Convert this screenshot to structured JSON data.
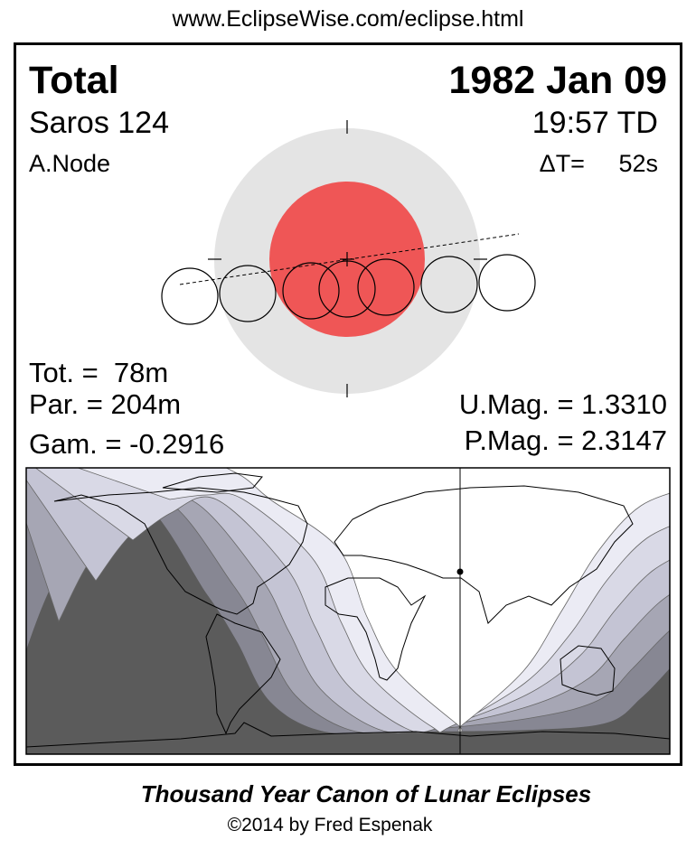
{
  "header": {
    "url": "www.EclipseWise.com/eclipse.html"
  },
  "eclipse": {
    "type": "Total",
    "date": "1982 Jan 09",
    "saros": "Saros 124",
    "time": "19:57 TD",
    "node": "A.Node",
    "delta_t": "ΔT=     52s",
    "total_duration": "Tot. =  78m",
    "partial_duration": "Par. = 204m",
    "gamma": "Gam. = -0.2916",
    "umbral_magnitude": "U.Mag. = 1.3310",
    "penumbral_magnitude": "P.Mag. = 2.3147"
  },
  "colors": {
    "penumbra": "#e4e4e4",
    "umbra": "#ef5656",
    "map_night": "#5b5b5b",
    "map_bands": [
      "#878793",
      "#a6a6b4",
      "#c4c4d4",
      "#d9d9e6",
      "#ebebf4",
      "#ffffff"
    ]
  },
  "footer": {
    "title": "Thousand Year Canon of Lunar Eclipses",
    "copyright": "©2014 by Fred Espenak"
  }
}
